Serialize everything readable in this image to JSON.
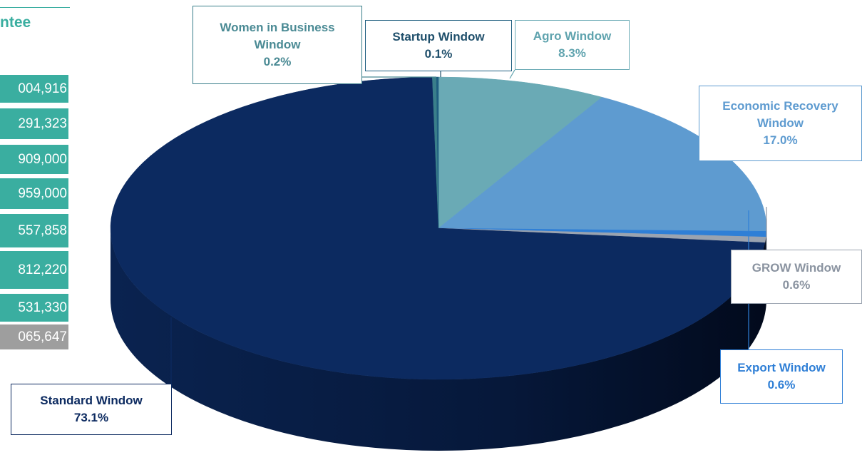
{
  "table": {
    "header": "ntee",
    "rows": [
      "004,916",
      "291,323",
      "909,000",
      "959,000",
      "557,858",
      "812,220",
      "531,330",
      "065,647"
    ]
  },
  "chart_data": {
    "type": "pie",
    "categories": [
      "Agro Window",
      "Economic Recovery Window",
      "Export Window",
      "GROW Window",
      "Standard Window",
      "Women in Business Window",
      "Startup Window"
    ],
    "values": [
      8.3,
      17.0,
      0.6,
      0.6,
      73.1,
      0.2,
      0.1
    ],
    "value_labels": [
      "8.3%",
      "17.0%",
      "0.6%",
      "0.6%",
      "73.1%",
      "0.2%",
      "0.1%"
    ],
    "colors": [
      "#6aaab5",
      "#5e9bd0",
      "#2f7fd6",
      "#9aa3b0",
      "#0c2a60",
      "#3a7f8a",
      "#1f5f80"
    ]
  }
}
